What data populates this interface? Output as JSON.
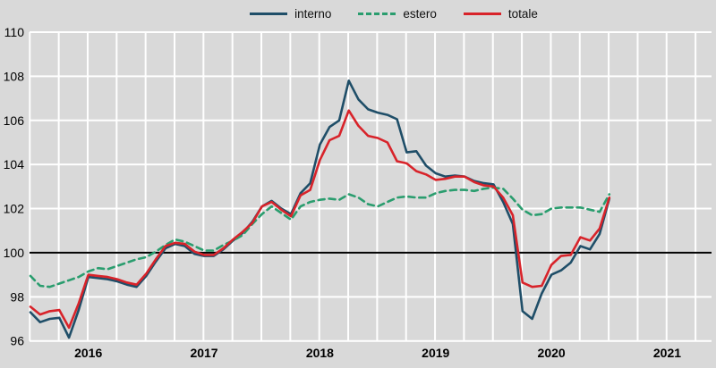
{
  "colors": {
    "background": "#d9d9d9",
    "gridline": "#ffffff",
    "reference_line": "#000000",
    "text": "#000000",
    "interno": "#1f4e68",
    "estero": "#2a9d6e",
    "totale": "#d8232a"
  },
  "legend": {
    "items": [
      {
        "label": "interno",
        "style": "solid"
      },
      {
        "label": "estero",
        "style": "dashed"
      },
      {
        "label": "totale",
        "style": "solid"
      }
    ]
  },
  "chart_data": {
    "type": "line",
    "title": "",
    "xlabel": "",
    "ylabel": "",
    "x_unit": "month",
    "x_start": "2016-01",
    "x_end": "2021-01",
    "n_points": 61,
    "x_tick_labels": [
      "2016",
      "2017",
      "2018",
      "2019",
      "2020",
      "2021"
    ],
    "y_ticks": [
      96,
      98,
      100,
      102,
      104,
      106,
      108,
      110
    ],
    "ylim": [
      96,
      110
    ],
    "reference_line": 100,
    "grid": "white gridlines on gray, vertical lines quarterly",
    "legend_position": "top-center",
    "series": [
      {
        "name": "interno",
        "color": "#1f4e68",
        "style": "solid",
        "values": [
          97.3,
          96.85,
          97.0,
          97.05,
          96.15,
          97.4,
          98.9,
          98.85,
          98.8,
          98.7,
          98.55,
          98.45,
          98.95,
          99.6,
          100.2,
          100.4,
          100.3,
          99.95,
          99.85,
          99.85,
          100.15,
          100.55,
          100.9,
          101.4,
          102.1,
          102.35,
          102.0,
          101.75,
          102.7,
          103.15,
          104.9,
          105.7,
          106.0,
          107.8,
          106.95,
          106.5,
          106.35,
          106.25,
          106.05,
          104.55,
          104.6,
          103.95,
          103.6,
          103.45,
          103.5,
          103.45,
          103.25,
          103.15,
          103.1,
          102.3,
          101.3,
          97.35,
          97.0,
          98.15,
          99.0,
          99.2,
          99.55,
          100.3,
          100.15,
          100.85,
          102.45
        ]
      },
      {
        "name": "estero",
        "color": "#2a9d6e",
        "style": "dashed",
        "values": [
          98.95,
          98.5,
          98.45,
          98.6,
          98.75,
          98.9,
          99.15,
          99.3,
          99.25,
          99.4,
          99.55,
          99.7,
          99.8,
          100.05,
          100.35,
          100.6,
          100.5,
          100.3,
          100.1,
          100.1,
          100.35,
          100.55,
          100.8,
          101.3,
          101.75,
          102.1,
          101.8,
          101.5,
          102.1,
          102.3,
          102.4,
          102.45,
          102.4,
          102.65,
          102.5,
          102.2,
          102.1,
          102.3,
          102.5,
          102.55,
          102.5,
          102.5,
          102.7,
          102.8,
          102.85,
          102.85,
          102.8,
          102.9,
          102.95,
          102.9,
          102.45,
          101.95,
          101.7,
          101.75,
          102.0,
          102.05,
          102.05,
          102.05,
          101.95,
          101.85,
          102.65
        ]
      },
      {
        "name": "totale",
        "color": "#d8232a",
        "style": "solid",
        "values": [
          97.55,
          97.2,
          97.35,
          97.4,
          96.6,
          97.7,
          99.0,
          98.95,
          98.9,
          98.8,
          98.65,
          98.55,
          99.05,
          99.7,
          100.3,
          100.45,
          100.4,
          100.05,
          99.9,
          99.9,
          100.2,
          100.6,
          100.95,
          101.35,
          102.1,
          102.3,
          101.95,
          101.65,
          102.6,
          102.85,
          104.2,
          105.1,
          105.3,
          106.45,
          105.75,
          105.3,
          105.2,
          105.0,
          104.15,
          104.05,
          103.7,
          103.55,
          103.3,
          103.35,
          103.45,
          103.45,
          103.2,
          103.05,
          103.0,
          102.5,
          101.7,
          98.65,
          98.45,
          98.5,
          99.45,
          99.85,
          99.9,
          100.7,
          100.55,
          101.1,
          102.5
        ]
      }
    ]
  }
}
